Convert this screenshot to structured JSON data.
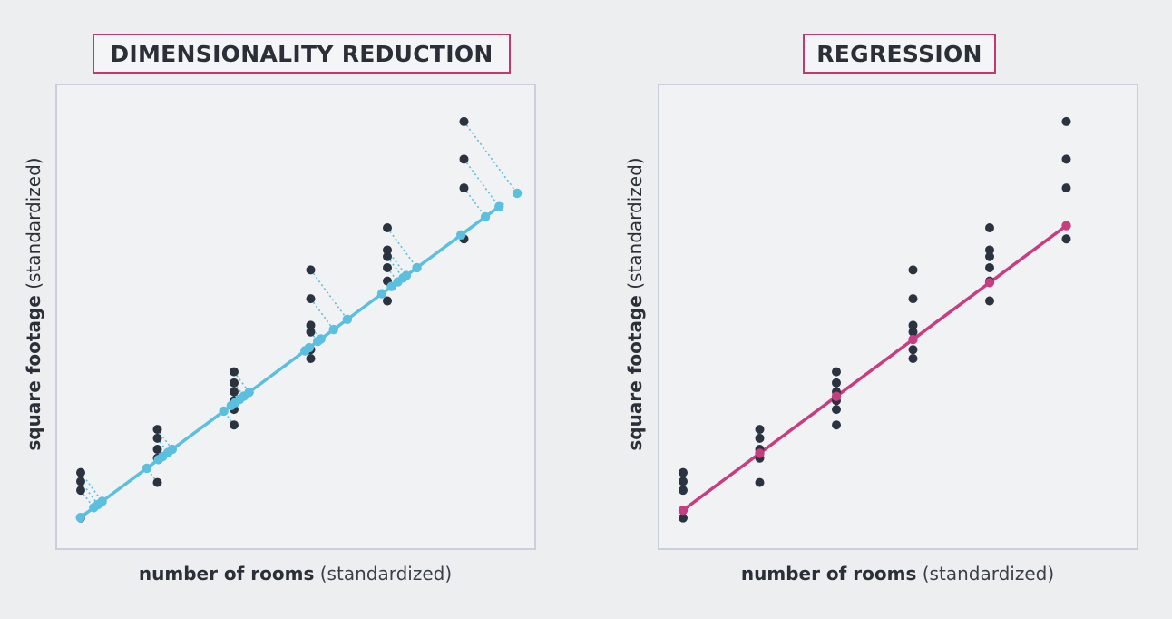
{
  "panels": [
    {
      "title": "DIMENSIONALITY REDUCTION",
      "xlabel_bold": "number of rooms",
      "xlabel_rest": " (standardized)",
      "ylabel_bold": "square footage",
      "ylabel_rest": " (standardized)",
      "mode": "projection",
      "accent": "#5bbfdf"
    },
    {
      "title": "REGRESSION",
      "xlabel_bold": "number of rooms",
      "xlabel_rest": " (standardized)",
      "ylabel_bold": "square footage",
      "ylabel_rest": " (standardized)",
      "mode": "regression",
      "accent": "#c83c80"
    }
  ],
  "colors": {
    "points": "#2b3340",
    "frame": "#c9cfdc",
    "title_border": "#c2386f"
  },
  "chart_data": {
    "type": "scatter",
    "x": [
      1,
      1,
      1,
      1,
      2,
      2,
      2,
      2,
      2,
      3,
      3,
      3,
      3,
      3,
      3,
      4,
      4,
      4,
      4,
      4,
      4,
      5,
      5,
      5,
      5,
      5,
      5,
      6,
      6,
      6,
      6
    ],
    "y": [
      1.55,
      1.95,
      2.35,
      0.3,
      3.0,
      3.4,
      3.9,
      4.3,
      1.9,
      4.5,
      5.2,
      5.6,
      6.0,
      6.4,
      6.9,
      11.5,
      10.2,
      9.0,
      8.7,
      7.9,
      7.5,
      13.4,
      12.4,
      12.1,
      11.6,
      11.0,
      10.1,
      18.2,
      16.5,
      15.2,
      12.9
    ],
    "fit_line": {
      "dimensionality_reduction": {
        "slope": 2.57,
        "intercept": -2.24,
        "x_from": 1,
        "x_to": 6.5
      },
      "regression": {
        "slope": 2.57,
        "intercept": -1.92,
        "x_from": 1,
        "x_to": 6
      }
    }
  }
}
